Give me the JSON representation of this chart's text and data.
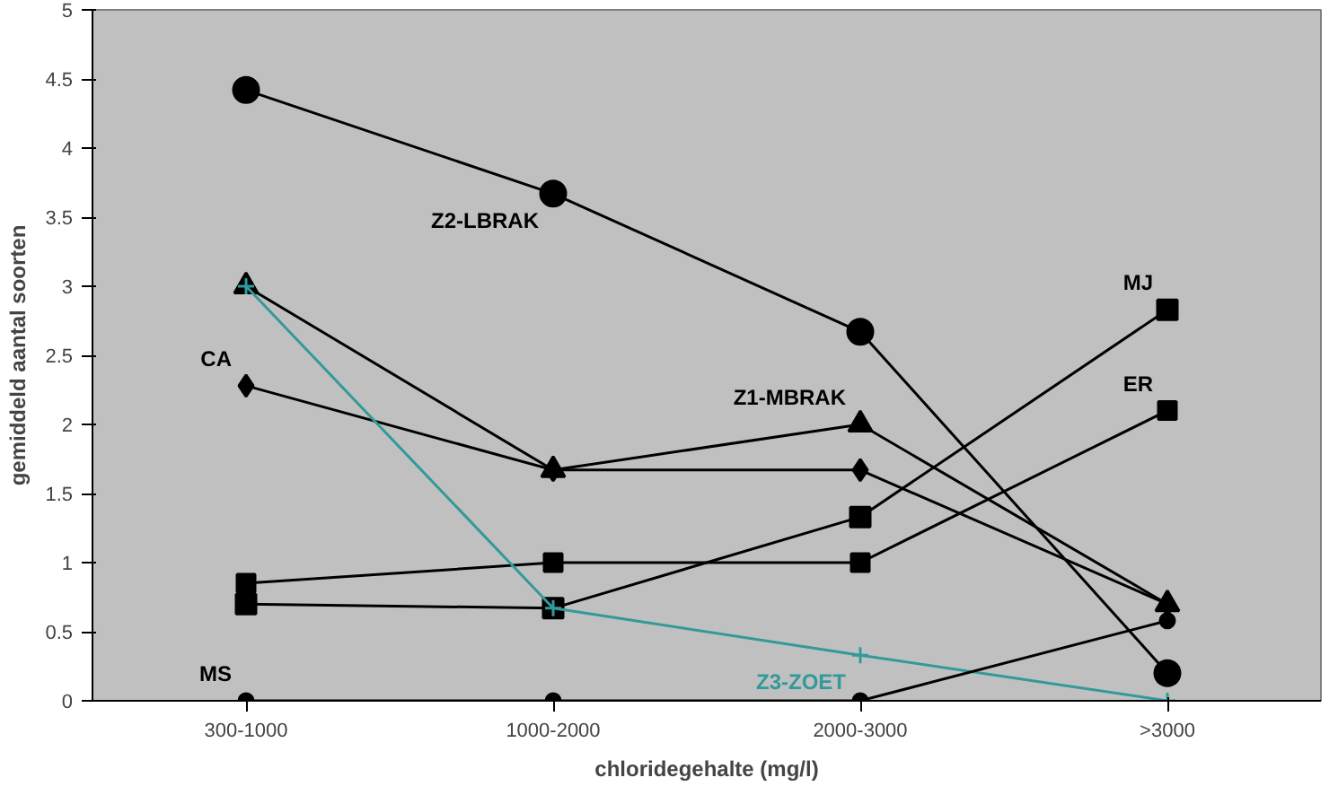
{
  "chart_data": {
    "type": "line",
    "xlabel": "chloridegehalte (mg/l)",
    "ylabel": "gemiddeld aantal soorten",
    "categories": [
      "300-1000",
      "1000-2000",
      "2000-3000",
      ">3000"
    ],
    "ylim": [
      0,
      5
    ],
    "yticks": [
      0,
      0.5,
      1,
      1.5,
      2,
      2.5,
      3,
      3.5,
      4,
      4.5,
      5
    ],
    "grid": false,
    "legend": false,
    "series": [
      {
        "name": "Z2-LBRAK",
        "color": "#000000",
        "marker": "circle",
        "values": [
          4.42,
          3.67,
          2.67,
          0.2
        ]
      },
      {
        "name": "Z1-MBRAK",
        "color": "#000000",
        "marker": "triangle",
        "values": [
          3.0,
          1.67,
          2.0,
          0.7
        ]
      },
      {
        "name": "CA",
        "color": "#000000",
        "marker": "diamond",
        "values": [
          2.28,
          1.67,
          1.67,
          0.7
        ]
      },
      {
        "name": "MJ",
        "color": "#000000",
        "marker": "square",
        "values": [
          0.7,
          0.67,
          1.33,
          2.83
        ]
      },
      {
        "name": "ER",
        "color": "#000000",
        "marker": "square",
        "values": [
          0.85,
          1.0,
          1.0,
          2.1
        ]
      },
      {
        "name": "Z3-ZOET",
        "color": "#339999",
        "marker": "cross",
        "values": [
          3.0,
          0.67,
          0.33,
          0.0
        ]
      },
      {
        "name": "MS",
        "color": "#000000",
        "marker": "circle",
        "values": [
          0.0,
          0.0,
          0.0,
          0.58
        ]
      }
    ]
  }
}
